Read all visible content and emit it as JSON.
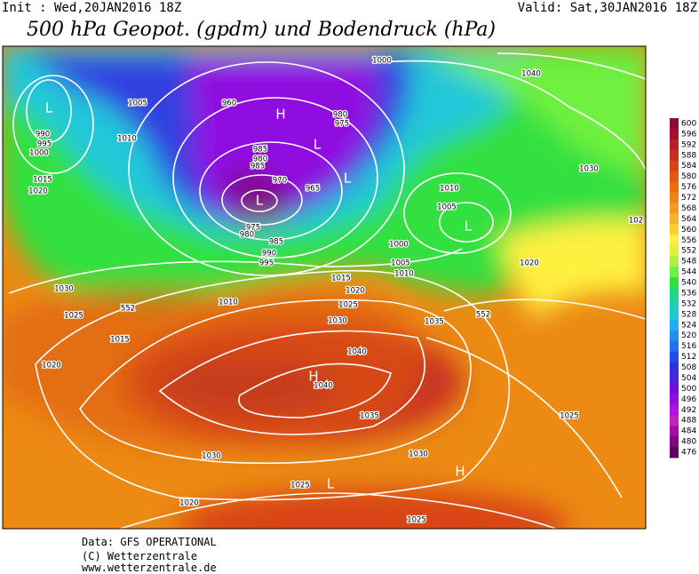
{
  "header": {
    "init": "Init : Wed,20JAN2016 18Z",
    "valid": "Valid: Sat,30JAN2016 18Z",
    "title": "500 hPa Geopot. (gpdm) und Bodendruck (hPa)"
  },
  "legend": {
    "levels": [
      600,
      596,
      592,
      588,
      584,
      580,
      576,
      572,
      568,
      564,
      560,
      556,
      552,
      548,
      544,
      540,
      536,
      532,
      528,
      524,
      520,
      516,
      512,
      508,
      504,
      500,
      496,
      492,
      488,
      484,
      480,
      476
    ],
    "colors": [
      "#8b0a3a",
      "#a01030",
      "#b81e28",
      "#c83020",
      "#d84418",
      "#e05a10",
      "#e87010",
      "#f08418",
      "#f49a20",
      "#f8b428",
      "#fcd030",
      "#fff040",
      "#e0f040",
      "#b0f040",
      "#70f040",
      "#30e040",
      "#20d880",
      "#20d0b0",
      "#20c8d8",
      "#20b0f0",
      "#2090f0",
      "#2070f0",
      "#2050e8",
      "#3030e0",
      "#5020e0",
      "#7010e0",
      "#9010e0",
      "#b010e0",
      "#c020c0",
      "#a010a0",
      "#800880",
      "#600060"
    ]
  },
  "map": {
    "pressure_labels": [
      "1000",
      "1005",
      "960",
      "980",
      "975",
      "1040",
      "990",
      "995",
      "1000",
      "1010",
      "985",
      "980",
      "985",
      "970",
      "965",
      "1015",
      "1020",
      "1030",
      "1010",
      "1005",
      "1000",
      "975",
      "980",
      "985",
      "990",
      "995",
      "1005",
      "1020",
      "1010",
      "1015",
      "1020",
      "1030",
      "1025",
      "1025",
      "1010",
      "552",
      "552",
      "1030",
      "1035",
      "1015",
      "1040",
      "1020",
      "1040",
      "1035",
      "1025",
      "1030",
      "1030",
      "1025",
      "1020",
      "1025",
      "102"
    ],
    "centers": [
      "L",
      "H",
      "L",
      "L",
      "L",
      "L",
      "H",
      "L",
      "H"
    ]
  },
  "footer": {
    "source": "Data: GFS OPERATIONAL",
    "copyright": "(C) Wetterzentrale",
    "url": "www.wetterzentrale.de"
  }
}
